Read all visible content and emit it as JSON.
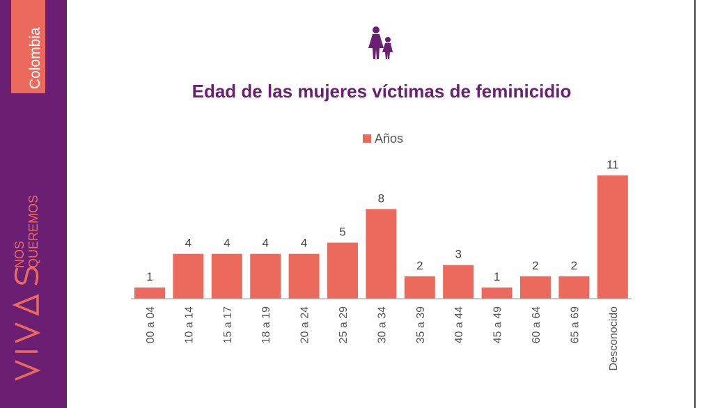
{
  "sidebar": {
    "tab_text": "Colombia",
    "logo_word": "VIVAS",
    "logo_small_1": "NOS",
    "logo_small_2": "QUEREMOS"
  },
  "colors": {
    "sidebar": "#6b1f73",
    "accent": "#ec6a5c",
    "title": "#6b1f73"
  },
  "header_icon": "woman-and-girl-icon",
  "chart_data": {
    "type": "bar",
    "title": "Edad de las mujeres víctimas de feminicidio",
    "legend": "Años",
    "legend_position": "top-center",
    "grid": false,
    "categories": [
      "00 a 04",
      "10 a 14",
      "15 a 17",
      "18 a 19",
      "20 a 24",
      "25 a 29",
      "30 a 34",
      "35 a 39",
      "40 a 44",
      "45 a 49",
      "60 a 64",
      "65 a 69",
      "Desconocido"
    ],
    "series": [
      {
        "name": "Años",
        "values": [
          1,
          4,
          4,
          4,
          4,
          5,
          8,
          2,
          3,
          1,
          2,
          2,
          11
        ]
      }
    ],
    "ylim": [
      0,
      11
    ]
  }
}
